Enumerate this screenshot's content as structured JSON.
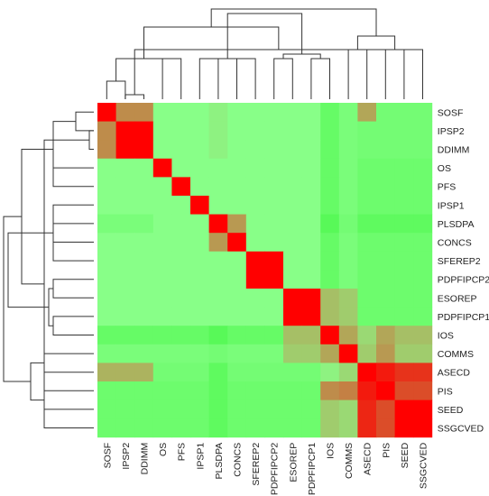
{
  "chart_data": {
    "type": "heatmap",
    "title": "",
    "xlabel": "",
    "ylabel": "",
    "labels": [
      "SOSF",
      "IPSP2",
      "DDIMM",
      "OS",
      "PFS",
      "IPSP1",
      "PLSDPA",
      "CONCS",
      "SFEREP2",
      "PDPFIPCP2",
      "ESOREP",
      "PDPFIPCP1",
      "IOS",
      "COMMS",
      "ASECD",
      "PIS",
      "SEED",
      "SSGCVED"
    ],
    "color_scale": {
      "low": "#00ee00",
      "mid": "#88ff88",
      "high": "#ff0000",
      "min": -1,
      "max": 1
    },
    "matrix": [
      [
        1.0,
        0.45,
        0.45,
        0.0,
        0.0,
        0.0,
        0.05,
        0.0,
        0.0,
        0.0,
        0.0,
        0.0,
        -0.25,
        -0.1,
        0.35,
        -0.15,
        -0.15,
        -0.15
      ],
      [
        0.45,
        1.0,
        1.0,
        0.0,
        0.0,
        0.0,
        0.05,
        0.0,
        0.0,
        0.0,
        0.0,
        0.0,
        -0.25,
        -0.1,
        -0.15,
        -0.15,
        -0.15,
        -0.15
      ],
      [
        0.45,
        1.0,
        1.0,
        0.0,
        0.0,
        0.0,
        0.05,
        0.0,
        0.0,
        0.0,
        0.0,
        0.0,
        -0.25,
        -0.1,
        -0.15,
        -0.15,
        -0.15,
        -0.15
      ],
      [
        0.0,
        0.0,
        0.0,
        1.0,
        0.0,
        0.0,
        0.0,
        0.0,
        0.0,
        0.0,
        0.0,
        0.0,
        -0.25,
        -0.1,
        -0.2,
        -0.2,
        -0.2,
        -0.2
      ],
      [
        0.0,
        0.0,
        0.0,
        0.0,
        1.0,
        0.0,
        0.0,
        0.0,
        0.0,
        0.0,
        0.0,
        0.0,
        -0.25,
        -0.1,
        -0.2,
        -0.2,
        -0.2,
        -0.2
      ],
      [
        0.0,
        0.0,
        0.0,
        0.0,
        0.0,
        1.0,
        0.0,
        0.0,
        0.0,
        0.0,
        0.0,
        0.0,
        -0.25,
        -0.1,
        -0.2,
        -0.2,
        -0.2,
        -0.2
      ],
      [
        -0.1,
        -0.1,
        -0.1,
        0.0,
        0.0,
        0.0,
        1.0,
        0.4,
        0.0,
        0.0,
        0.0,
        0.0,
        -0.35,
        -0.15,
        -0.3,
        -0.3,
        -0.3,
        -0.3
      ],
      [
        0.0,
        0.0,
        0.0,
        0.0,
        0.0,
        0.0,
        0.4,
        1.0,
        0.0,
        0.0,
        0.0,
        0.0,
        -0.25,
        -0.1,
        -0.2,
        -0.2,
        -0.2,
        -0.2
      ],
      [
        0.0,
        0.0,
        0.0,
        0.0,
        0.0,
        0.0,
        0.0,
        0.0,
        1.0,
        1.0,
        0.0,
        0.0,
        -0.25,
        -0.1,
        -0.2,
        -0.2,
        -0.2,
        -0.2
      ],
      [
        0.0,
        0.0,
        0.0,
        0.0,
        0.0,
        0.0,
        0.0,
        0.0,
        1.0,
        1.0,
        0.0,
        0.0,
        -0.25,
        -0.1,
        -0.2,
        -0.2,
        -0.2,
        -0.2
      ],
      [
        0.0,
        0.0,
        0.0,
        0.0,
        0.0,
        0.0,
        0.0,
        0.0,
        0.0,
        0.0,
        1.0,
        1.0,
        0.25,
        0.2,
        -0.2,
        -0.2,
        -0.2,
        -0.2
      ],
      [
        0.0,
        0.0,
        0.0,
        0.0,
        0.0,
        0.0,
        0.0,
        0.0,
        0.0,
        0.0,
        1.0,
        1.0,
        0.25,
        0.2,
        -0.2,
        -0.2,
        -0.2,
        -0.2
      ],
      [
        -0.25,
        -0.25,
        -0.25,
        -0.25,
        -0.25,
        -0.25,
        -0.35,
        -0.25,
        -0.25,
        -0.25,
        0.25,
        0.25,
        1.0,
        0.35,
        0.15,
        0.35,
        0.25,
        0.25
      ],
      [
        -0.1,
        -0.1,
        -0.1,
        -0.1,
        -0.1,
        -0.1,
        -0.15,
        -0.1,
        -0.1,
        -0.1,
        0.2,
        0.2,
        0.35,
        1.0,
        0.2,
        0.4,
        0.2,
        0.2
      ],
      [
        0.3,
        0.3,
        0.3,
        -0.15,
        -0.15,
        -0.15,
        -0.3,
        -0.15,
        -0.15,
        -0.15,
        -0.15,
        -0.15,
        0.05,
        0.15,
        1.0,
        0.9,
        0.8,
        0.8
      ],
      [
        -0.2,
        -0.2,
        -0.2,
        -0.2,
        -0.2,
        -0.2,
        -0.3,
        -0.2,
        -0.2,
        -0.2,
        -0.2,
        -0.2,
        0.45,
        0.5,
        0.9,
        1.0,
        0.7,
        0.7
      ],
      [
        -0.2,
        -0.2,
        -0.2,
        -0.2,
        -0.2,
        -0.2,
        -0.3,
        -0.2,
        -0.2,
        -0.2,
        -0.2,
        -0.2,
        0.2,
        0.15,
        0.85,
        0.7,
        1.0,
        1.0
      ],
      [
        -0.2,
        -0.2,
        -0.2,
        -0.2,
        -0.2,
        -0.2,
        -0.3,
        -0.2,
        -0.2,
        -0.2,
        -0.2,
        -0.2,
        0.2,
        0.15,
        0.85,
        0.7,
        1.0,
        1.0
      ]
    ],
    "dendrogram": {
      "merges": [
        [
          1,
          2,
          0.05
        ],
        [
          0,
          1,
          0.2
        ],
        [
          3,
          4,
          0.45
        ],
        [
          5,
          6,
          0.45
        ],
        [
          7,
          8,
          0.45
        ],
        [
          9,
          10,
          0.45
        ],
        [
          11,
          12,
          0.45
        ],
        [
          13,
          14,
          0.55
        ],
        [
          15,
          16,
          0.55
        ],
        [
          17,
          18,
          0.55
        ],
        [
          19,
          20,
          0.45
        ],
        [
          21,
          22,
          0.45
        ],
        [
          23,
          24,
          0.5
        ],
        [
          25,
          26,
          0.7
        ],
        [
          27,
          28,
          0.8
        ],
        [
          29,
          30,
          0.95
        ],
        [
          31,
          32,
          1.0
        ]
      ]
    },
    "legend": false,
    "grid": false
  }
}
